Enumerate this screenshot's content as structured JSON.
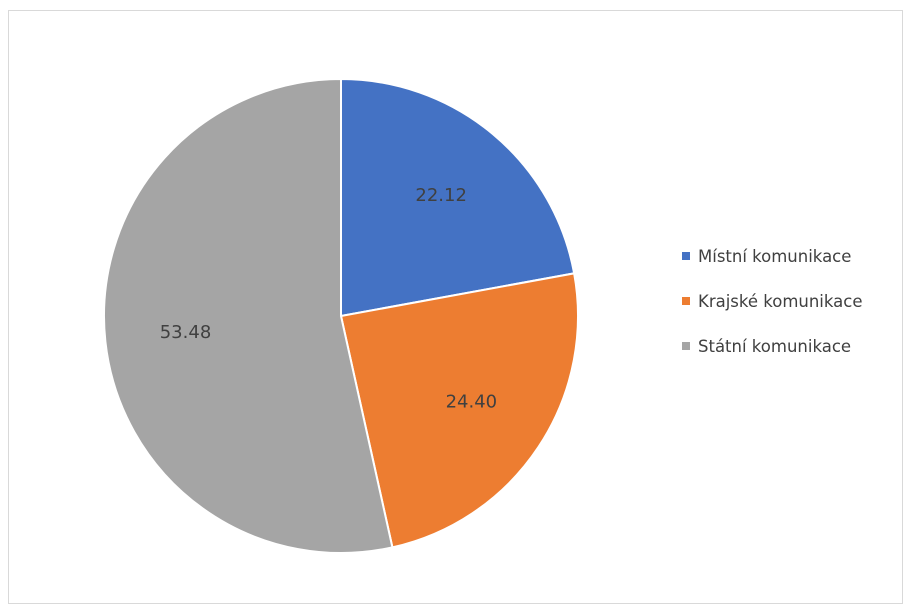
{
  "chart_data": {
    "type": "pie",
    "title": "",
    "categories": [
      "Místní komunikace",
      "Krajské komunikace",
      "Státní komunikace"
    ],
    "values": [
      22.12,
      24.4,
      53.48
    ],
    "data_labels": [
      "22.12",
      "24.40",
      "53.48"
    ],
    "colors": [
      "#4472c4",
      "#ed7d31",
      "#a5a5a5"
    ],
    "start_angle_deg": 0,
    "direction": "clockwise",
    "legend_position": "right",
    "grid": false
  }
}
